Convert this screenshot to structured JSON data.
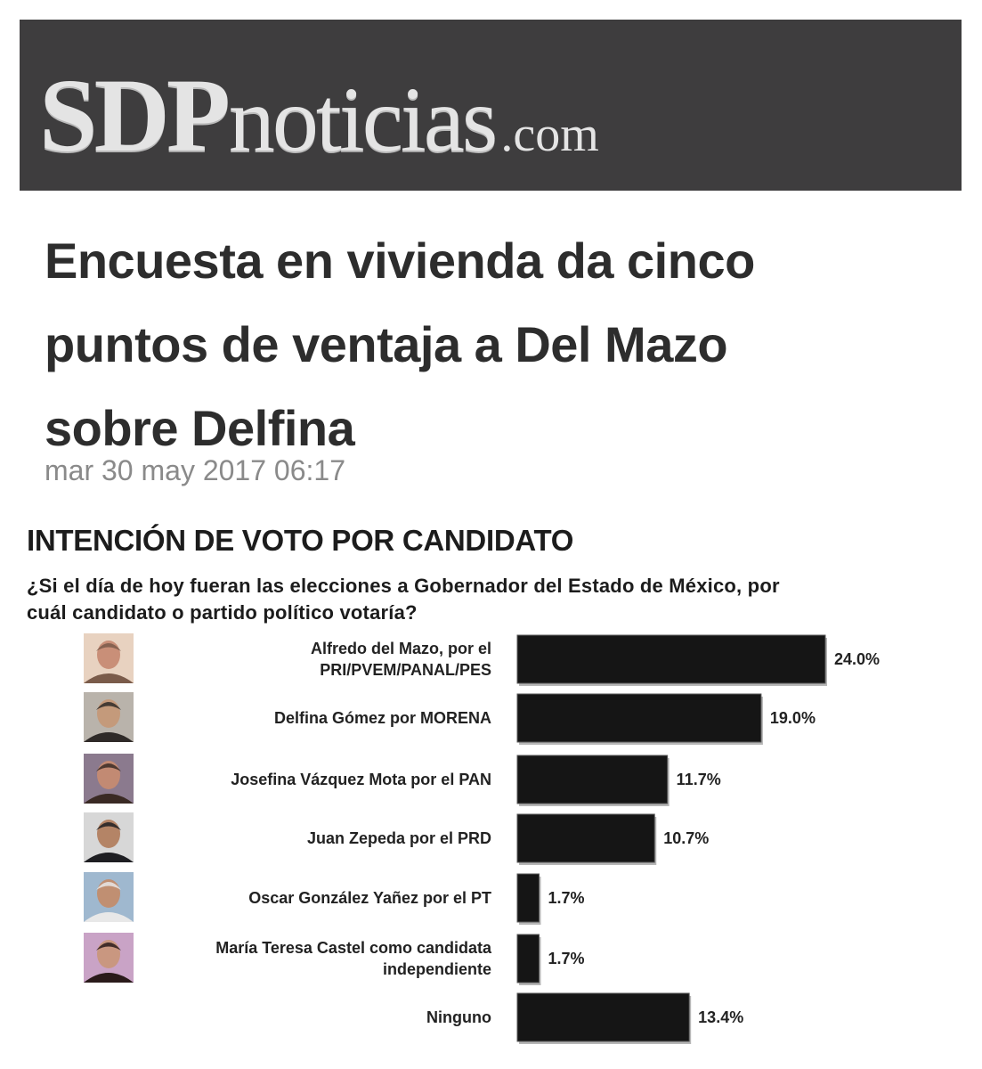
{
  "masthead": {
    "logo_sdp": "SDP",
    "logo_noticias": "noticias",
    "logo_com": ".com"
  },
  "article": {
    "headline_lines": [
      "Encuesta en vivienda da cinco",
      "puntos de ventaja a Del Mazo",
      "sobre Delfina"
    ],
    "date": "mar 30 may 2017 06:17"
  },
  "chart_data": {
    "type": "bar",
    "orientation": "horizontal",
    "title": "INTENCIÓN DE VOTO POR CANDIDATO",
    "subtitle_lines": [
      "¿Si el día de hoy fueran las elecciones a Gobernador del Estado de México, por",
      "cuál candidato o partido político votaría?"
    ],
    "categories": [
      [
        "Alfredo del Mazo, por el",
        "PRI/PVEM/PANAL/PES"
      ],
      [
        "Delfina Gómez por MORENA"
      ],
      [
        "Josefina Vázquez Mota por el PAN"
      ],
      [
        "Juan Zepeda por el PRD"
      ],
      [
        "Oscar González Yañez por el PT"
      ],
      [
        "María Teresa Castel como candidata",
        "independiente"
      ],
      [
        "Ninguno"
      ]
    ],
    "values": [
      24.0,
      19.0,
      11.7,
      10.7,
      1.7,
      1.7,
      13.4
    ],
    "value_labels": [
      "24.0%",
      "19.0%",
      "11.7%",
      "10.7%",
      "1.7%",
      "1.7%",
      "13.4%"
    ],
    "photos": [
      true,
      true,
      true,
      true,
      true,
      true,
      false
    ],
    "bar_color": "#151515",
    "xlim": [
      0,
      24.0
    ],
    "grid": false,
    "legend": "none"
  }
}
